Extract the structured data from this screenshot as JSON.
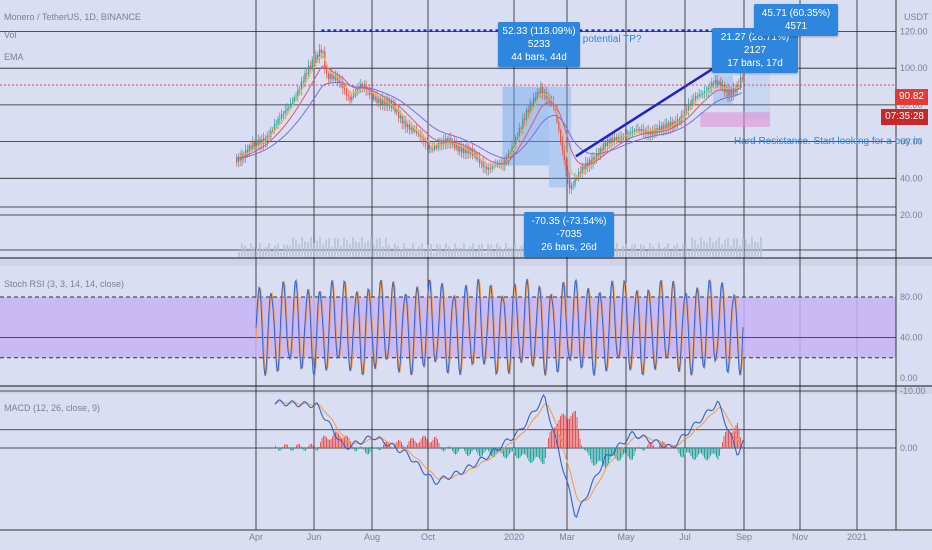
{
  "header": {
    "symbol": "Monero / TetherUS, 1D, BINANCE",
    "ind_vol": "Vol",
    "ind_ema": "EMA"
  },
  "currency": "USDT",
  "price_label": "90.82",
  "countdown": "07:35:28",
  "rsi_title": "Stoch RSI (3, 3, 14, 14, close)",
  "macd_title": "MACD (12, 26, close, 9)",
  "notes": {
    "top": "H, potential TP?",
    "resistance": "Hard Resistance. Start looking for a buy in"
  },
  "measures": [
    {
      "line1": "52.33 (118.09%) 5233",
      "line2": "44 bars, 44d"
    },
    {
      "line1": "-70.35 (-73.54%) -7035",
      "line2": "26 bars, 26d"
    },
    {
      "line1": "21.27 (28.71%) 2127",
      "line2": "17 bars, 17d"
    },
    {
      "line1": "45.71 (60.35%) 4571",
      "line2": ""
    }
  ],
  "colors": {
    "background": "#d9def2",
    "up": "#26a69a",
    "down": "#ef5350",
    "rsi_band": "#c5b4f7",
    "trend": "#1f25c9",
    "measure": "#2e86de",
    "price_line": "#e53935"
  },
  "chart_data": [
    {
      "type": "candlestick",
      "pane": "price",
      "x_ticks": [
        "Apr",
        "Jun",
        "Aug",
        "Oct",
        "2020",
        "Mar",
        "May",
        "Jul",
        "Sep",
        "Nov",
        "2021"
      ],
      "y_ticks": [
        120.0,
        100.0,
        80.0,
        60.0,
        40.0,
        20.0
      ],
      "ylim": [
        20,
        125
      ],
      "last_price": 90.82,
      "close_path": [
        {
          "date": "2019-03-20",
          "close": 51
        },
        {
          "date": "2019-04-01",
          "close": 55
        },
        {
          "date": "2019-04-20",
          "close": 62
        },
        {
          "date": "2019-05-10",
          "close": 75
        },
        {
          "date": "2019-05-25",
          "close": 88
        },
        {
          "date": "2019-06-10",
          "close": 103
        },
        {
          "date": "2019-06-20",
          "close": 112
        },
        {
          "date": "2019-06-25",
          "close": 96
        },
        {
          "date": "2019-07-10",
          "close": 92
        },
        {
          "date": "2019-07-20",
          "close": 84
        },
        {
          "date": "2019-08-01",
          "close": 90
        },
        {
          "date": "2019-08-20",
          "close": 83
        },
        {
          "date": "2019-09-05",
          "close": 78
        },
        {
          "date": "2019-09-25",
          "close": 66
        },
        {
          "date": "2019-10-15",
          "close": 57
        },
        {
          "date": "2019-11-05",
          "close": 60
        },
        {
          "date": "2019-11-25",
          "close": 54
        },
        {
          "date": "2019-12-15",
          "close": 46
        },
        {
          "date": "2020-01-01",
          "close": 47
        },
        {
          "date": "2020-01-20",
          "close": 68
        },
        {
          "date": "2020-02-10",
          "close": 90
        },
        {
          "date": "2020-02-25",
          "close": 78
        },
        {
          "date": "2020-03-13",
          "close": 35
        },
        {
          "date": "2020-04-01",
          "close": 48
        },
        {
          "date": "2020-04-20",
          "close": 58
        },
        {
          "date": "2020-05-10",
          "close": 64
        },
        {
          "date": "2020-06-01",
          "close": 66
        },
        {
          "date": "2020-06-20",
          "close": 66
        },
        {
          "date": "2020-07-10",
          "close": 73
        },
        {
          "date": "2020-07-28",
          "close": 85
        },
        {
          "date": "2020-08-15",
          "close": 92
        },
        {
          "date": "2020-08-30",
          "close": 87
        },
        {
          "date": "2020-09-10",
          "close": 90
        },
        {
          "date": "2020-09-16",
          "close": 96
        }
      ],
      "volume": true,
      "ema_lines": 3
    },
    {
      "type": "line",
      "pane": "stoch_rsi",
      "y_ticks": [
        80.0,
        40.0,
        0.0
      ],
      "ylim": [
        0,
        100
      ],
      "band": [
        20,
        80
      ],
      "cycles": 40
    },
    {
      "type": "line",
      "pane": "macd",
      "y_ticks": [
        0.0,
        -10.0
      ],
      "ylim": [
        -12,
        10
      ],
      "macd_path": [
        {
          "date": "2019-05-01",
          "macd": 8
        },
        {
          "date": "2019-06-15",
          "macd": 7.5
        },
        {
          "date": "2019-07-15",
          "macd": 0
        },
        {
          "date": "2019-08-15",
          "macd": 2
        },
        {
          "date": "2019-09-20",
          "macd": -1
        },
        {
          "date": "2019-10-20",
          "macd": -6
        },
        {
          "date": "2019-11-20",
          "macd": -4
        },
        {
          "date": "2019-12-20",
          "macd": -1
        },
        {
          "date": "2020-01-20",
          "macd": 3
        },
        {
          "date": "2020-02-15",
          "macd": 9
        },
        {
          "date": "2020-03-20",
          "macd": -12
        },
        {
          "date": "2020-04-20",
          "macd": -2
        },
        {
          "date": "2020-05-20",
          "macd": 2.5
        },
        {
          "date": "2020-07-01",
          "macd": 0
        },
        {
          "date": "2020-08-20",
          "macd": 8
        },
        {
          "date": "2020-09-10",
          "macd": -1
        },
        {
          "date": "2020-09-16",
          "macd": 1
        }
      ]
    }
  ]
}
